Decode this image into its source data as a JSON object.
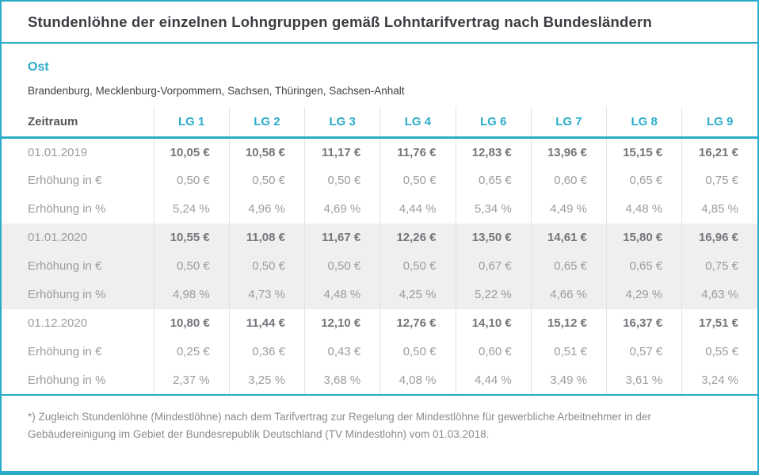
{
  "page": {
    "title": "Stundenlöhne der einzelnen Lohngruppen gemäß Lohntarifvertrag nach Bundesländern"
  },
  "region": {
    "name": "Ost",
    "states": "Brandenburg, Mecklenburg-Vorpommern, Sachsen, Thüringen, Sachsen-Anhalt"
  },
  "table": {
    "columns": [
      "Zeitraum",
      "LG 1",
      "LG 2",
      "LG 3",
      "LG 4",
      "LG 6",
      "LG 7",
      "LG 8",
      "LG 9"
    ],
    "row_labels": {
      "increase_eur": "Erhöhung in €",
      "increase_pct": "Erhöhung in %"
    },
    "groups": [
      {
        "date": "01.01.2019",
        "shaded": false,
        "wages": [
          "10,05 €",
          "10,58 €",
          "11,17 €",
          "11,76 €",
          "12,83 €",
          "13,96 €",
          "15,15 €",
          "16,21 €"
        ],
        "increase_eur": [
          "0,50 €",
          "0,50 €",
          "0,50 €",
          "0,50 €",
          "0,65 €",
          "0,60 €",
          "0,65 €",
          "0,75 €"
        ],
        "increase_pct": [
          "5,24 %",
          "4,96 %",
          "4,69 %",
          "4,44 %",
          "5,34 %",
          "4,49 %",
          "4,48 %",
          "4,85 %"
        ]
      },
      {
        "date": "01.01.2020",
        "shaded": true,
        "wages": [
          "10,55 €",
          "11,08 €",
          "11,67 €",
          "12,26 €",
          "13,50 €",
          "14,61 €",
          "15,80 €",
          "16,96 €"
        ],
        "increase_eur": [
          "0,50 €",
          "0,50 €",
          "0,50 €",
          "0,50 €",
          "0,67 €",
          "0,65 €",
          "0,65 €",
          "0,75 €"
        ],
        "increase_pct": [
          "4,98 %",
          "4,73 %",
          "4,48 %",
          "4,25 %",
          "5,22 %",
          "4,66 %",
          "4,29 %",
          "4,63 %"
        ]
      },
      {
        "date": "01.12.2020",
        "shaded": false,
        "wages": [
          "10,80 €",
          "11,44 €",
          "12,10 €",
          "12,76 €",
          "14,10 €",
          "15,12 €",
          "16,37 €",
          "17,51 €"
        ],
        "increase_eur": [
          "0,25 €",
          "0,36 €",
          "0,43 €",
          "0,50 €",
          "0,60 €",
          "0,51 €",
          "0,57 €",
          "0,55 €"
        ],
        "increase_pct": [
          "2,37 %",
          "3,25 %",
          "3,68 %",
          "4,08 %",
          "4,44 %",
          "3,49 %",
          "3,61 %",
          "3,24 %"
        ]
      }
    ]
  },
  "footnote": "*) Zugleich Stundenlöhne (Mindestlöhne) nach dem Tarifvertrag zur Regelung der Mindestlöhne für gewerbliche Arbeitnehmer in der Gebäudereinigung im Gebiet der Bundesrepublik Deutschland (TV Mindestlohn) vom 01.03.2018.",
  "colors": {
    "accent": "#2BACC9",
    "shaded_row_bg": "#EFEFEF"
  }
}
